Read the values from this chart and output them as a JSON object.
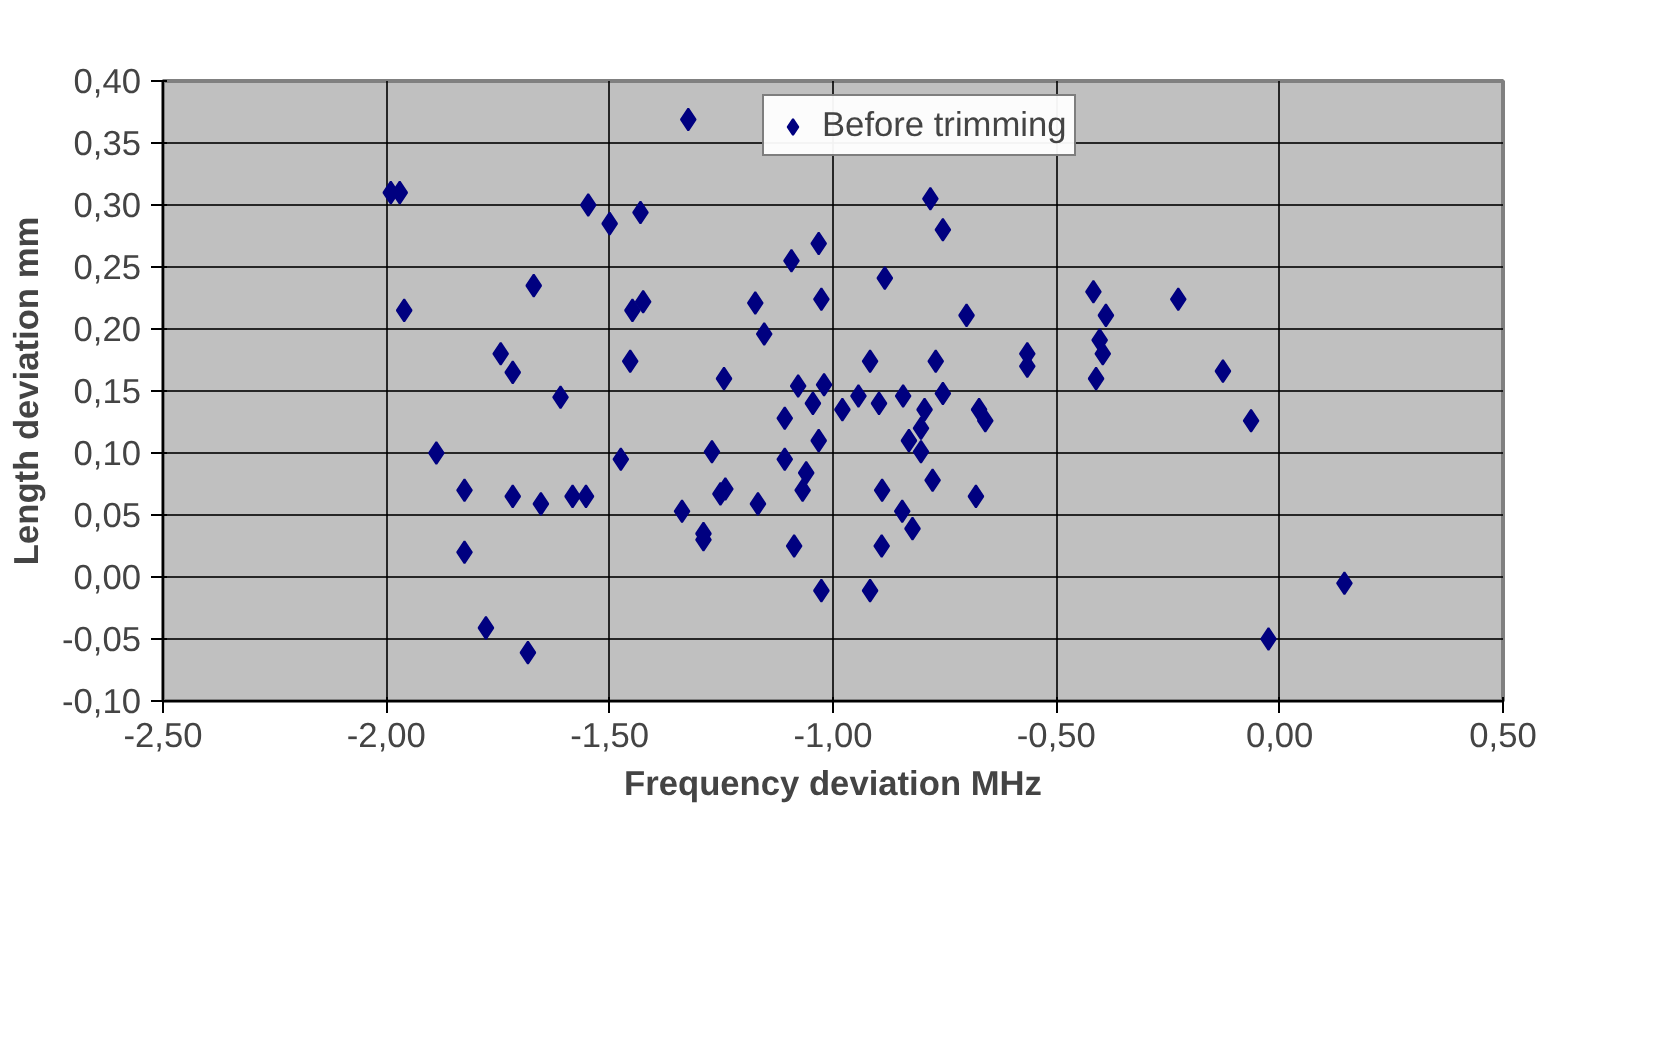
{
  "chart_data": {
    "type": "scatter",
    "xlabel": "Frequency deviation MHz",
    "ylabel": "Length deviation mm",
    "xlim": [
      -2.5,
      0.5
    ],
    "ylim": [
      -0.1,
      0.4
    ],
    "xticks": [
      {
        "value": -2.5,
        "label": "-2,50"
      },
      {
        "value": -2.0,
        "label": "-2,00"
      },
      {
        "value": -1.5,
        "label": "-1,50"
      },
      {
        "value": -1.0,
        "label": "-1,00"
      },
      {
        "value": -0.5,
        "label": "-0,50"
      },
      {
        "value": 0.0,
        "label": "0,00"
      },
      {
        "value": 0.5,
        "label": "0,50"
      }
    ],
    "yticks": [
      {
        "value": -0.1,
        "label": "-0,10"
      },
      {
        "value": -0.05,
        "label": "-0,05"
      },
      {
        "value": 0.0,
        "label": "0,00"
      },
      {
        "value": 0.05,
        "label": "0,05"
      },
      {
        "value": 0.1,
        "label": "0,10"
      },
      {
        "value": 0.15,
        "label": "0,15"
      },
      {
        "value": 0.2,
        "label": "0,20"
      },
      {
        "value": 0.25,
        "label": "0,25"
      },
      {
        "value": 0.3,
        "label": "0,30"
      },
      {
        "value": 0.35,
        "label": "0,35"
      },
      {
        "value": 0.4,
        "label": "0,40"
      }
    ],
    "grid": true,
    "legend": "top",
    "marker": "diamond",
    "series": [
      {
        "name": "Before trimming",
        "color": "#000080",
        "x": [
          -1.99,
          -1.97,
          -1.548,
          -1.5,
          -1.67,
          -1.96,
          -1.744,
          -1.717,
          -1.61,
          -1.888,
          -1.475,
          -1.825,
          -1.717,
          -1.654,
          -1.583,
          -1.553,
          -1.825,
          -1.777,
          -1.683,
          -1.324,
          -1.431,
          -1.449,
          -1.425,
          -1.454,
          -1.244,
          -1.271,
          -1.338,
          -1.29,
          -1.29,
          -1.252,
          -1.241,
          -1.174,
          -1.154,
          -1.168,
          -1.093,
          -1.032,
          -1.026,
          -1.078,
          -1.02,
          -1.045,
          -1.108,
          -1.032,
          -1.108,
          -1.06,
          -1.068,
          -1.087,
          -1.026,
          -0.979,
          -0.943,
          -0.897,
          -0.917,
          -0.884,
          -0.782,
          -0.754,
          -0.701,
          -0.77,
          -0.754,
          -0.843,
          -0.795,
          -0.803,
          -0.83,
          -0.803,
          -0.777,
          -0.89,
          -0.845,
          -0.822,
          -0.891,
          -0.917,
          -0.673,
          -0.659,
          -0.68,
          -0.565,
          -0.565,
          -0.417,
          -0.389,
          -0.403,
          -0.396,
          -0.411,
          -0.227,
          -0.127,
          -0.064,
          0.145,
          -0.025
        ],
        "values": [
          0.31,
          0.31,
          0.3,
          0.285,
          0.235,
          0.215,
          0.18,
          0.165,
          0.145,
          0.1,
          0.095,
          0.07,
          0.065,
          0.059,
          0.065,
          0.065,
          0.02,
          -0.041,
          -0.061,
          0.369,
          0.294,
          0.215,
          0.222,
          0.174,
          0.16,
          0.101,
          0.053,
          0.035,
          0.03,
          0.067,
          0.071,
          0.221,
          0.196,
          0.059,
          0.255,
          0.269,
          0.224,
          0.154,
          0.155,
          0.14,
          0.128,
          0.11,
          0.095,
          0.084,
          0.07,
          0.025,
          -0.011,
          0.135,
          0.146,
          0.14,
          0.174,
          0.241,
          0.305,
          0.28,
          0.211,
          0.174,
          0.148,
          0.146,
          0.135,
          0.12,
          0.11,
          0.101,
          0.078,
          0.07,
          0.053,
          0.039,
          0.025,
          -0.011,
          0.135,
          0.126,
          0.065,
          0.18,
          0.17,
          0.23,
          0.211,
          0.191,
          0.18,
          0.16,
          0.224,
          0.166,
          0.126,
          -0.005,
          -0.05
        ]
      }
    ]
  }
}
